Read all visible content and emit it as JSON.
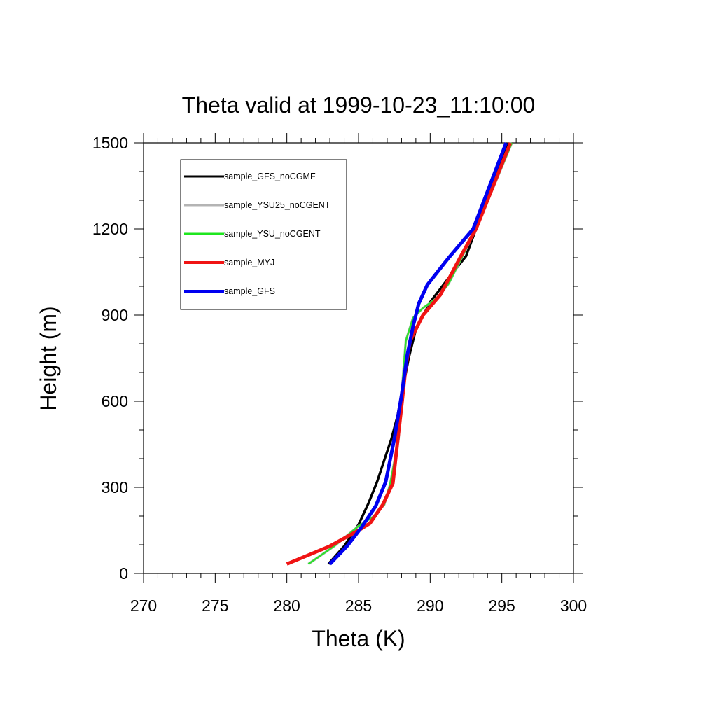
{
  "chart_data": {
    "type": "line",
    "title": "Theta valid at 1999-10-23_11:10:00",
    "xlabel": "Theta (K)",
    "ylabel": "Height (m)",
    "xlim": [
      270,
      300
    ],
    "ylim": [
      0,
      1500
    ],
    "xticks": [
      "270",
      "275",
      "280",
      "285",
      "290",
      "295",
      "300"
    ],
    "yticks": [
      "0",
      "300",
      "600",
      "900",
      "1200",
      "1500"
    ],
    "legend_position": "top-left",
    "series": [
      {
        "name": "sample_GFS_noCGMF",
        "color": "#000000",
        "x": [
          282.9,
          284.0,
          285.0,
          285.7,
          286.3,
          286.8,
          287.3,
          287.7,
          288.0,
          288.5,
          289.0,
          290.0,
          291.3,
          292.5,
          293.2,
          295.4
        ],
        "y": [
          33,
          95,
          170,
          245,
          320,
          395,
          470,
          545,
          620,
          750,
          850,
          945,
          1030,
          1105,
          1200,
          1500
        ]
      },
      {
        "name": "sample_YSU25_noCGENT",
        "color": "#b4b4b4",
        "x": [
          281.5,
          283.3,
          285.0,
          286.1,
          286.8,
          287.2,
          287.5,
          287.8,
          288.0,
          288.3,
          288.8,
          289.5,
          290.5,
          291.3,
          292.5,
          293.2,
          295.7
        ],
        "y": [
          33,
          95,
          165,
          200,
          240,
          310,
          390,
          470,
          620,
          810,
          890,
          925,
          960,
          1010,
          1130,
          1200,
          1500
        ]
      },
      {
        "name": "sample_YSU_noCGENT",
        "color": "#1ee61e",
        "x": [
          281.5,
          283.3,
          285.0,
          286.1,
          286.8,
          287.2,
          287.5,
          287.8,
          288.0,
          288.3,
          288.8,
          289.5,
          290.5,
          291.3,
          292.5,
          293.2,
          295.7
        ],
        "y": [
          33,
          95,
          165,
          200,
          240,
          310,
          390,
          470,
          620,
          810,
          890,
          925,
          960,
          1010,
          1130,
          1200,
          1500
        ]
      },
      {
        "name": "sample_MYJ",
        "color": "#f01414",
        "x": [
          280.0,
          283.0,
          285.0,
          285.8,
          286.7,
          287.4,
          287.7,
          288.0,
          288.3,
          288.6,
          289.5,
          290.7,
          292.3,
          293.2,
          295.6
        ],
        "y": [
          33,
          95,
          150,
          175,
          240,
          315,
          450,
          580,
          720,
          810,
          900,
          970,
          1120,
          1200,
          1500
        ]
      },
      {
        "name": "sample_GFS",
        "color": "#0000f0",
        "x": [
          283.0,
          284.2,
          285.2,
          286.2,
          286.9,
          287.5,
          288.0,
          288.4,
          288.8,
          289.2,
          289.8,
          291.3,
          293.0,
          295.3
        ],
        "y": [
          33,
          95,
          160,
          235,
          320,
          470,
          620,
          760,
          860,
          940,
          1005,
          1100,
          1200,
          1500
        ]
      }
    ]
  }
}
